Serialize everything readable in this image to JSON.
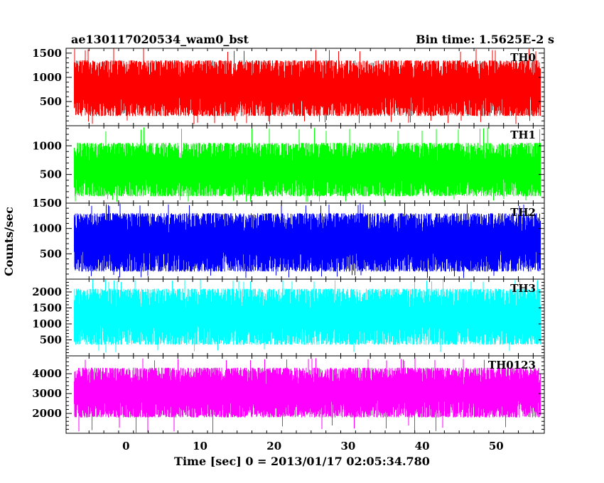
{
  "header": {
    "title": "ae130117020534_wam0_bst",
    "bin_time": "Bin time: 1.5625E-2 s"
  },
  "axes": {
    "ylabel": "Counts/sec",
    "xlabel": "Time [sec] 0 = 2013/01/17 02:05:34.780",
    "xlim": [
      -8.1,
      56.5
    ],
    "xticks": [
      0,
      10,
      20,
      30,
      40,
      50
    ],
    "xtick_labels": [
      "0",
      "10",
      "20",
      "30",
      "40",
      "50"
    ]
  },
  "chart_data": [
    {
      "type": "line",
      "name": "TH0",
      "label": "TH0",
      "color": "#ff0000",
      "ylim": [
        0,
        1600
      ],
      "yticks": [
        500,
        1000,
        1500
      ],
      "ytick_labels": [
        "500",
        "1000",
        "1500"
      ],
      "x_range": [
        -7.0,
        56.0
      ],
      "y_low_typical": 200,
      "y_high_typical": 1350,
      "y_max": 1600,
      "y_min": 30
    },
    {
      "type": "line",
      "name": "TH1",
      "label": "TH1",
      "color": "#00ff00",
      "ylim": [
        0,
        1350
      ],
      "yticks": [
        500,
        1000
      ],
      "ytick_labels": [
        "500",
        "1000"
      ],
      "x_range": [
        -7.0,
        56.0
      ],
      "y_low_typical": 120,
      "y_high_typical": 1050,
      "y_max": 1330,
      "y_min": 20
    },
    {
      "type": "line",
      "name": "TH2",
      "label": "TH2",
      "color": "#0000ff",
      "ylim": [
        0,
        1500
      ],
      "yticks": [
        500,
        1000,
        1500
      ],
      "ytick_labels": [
        "500",
        "1000",
        "1500"
      ],
      "x_range": [
        -7.0,
        56.0
      ],
      "y_low_typical": 150,
      "y_high_typical": 1300,
      "y_max": 1500,
      "y_min": 20
    },
    {
      "type": "line",
      "name": "TH3",
      "label": "TH3",
      "color": "#00ffff",
      "ylim": [
        0,
        2400
      ],
      "yticks": [
        500,
        1000,
        1500,
        2000
      ],
      "ytick_labels": [
        "500",
        "1000",
        "1500",
        "2000"
      ],
      "x_range": [
        -7.0,
        56.0
      ],
      "y_low_typical": 350,
      "y_high_typical": 2100,
      "y_max": 2400,
      "y_min": 100
    },
    {
      "type": "line",
      "name": "TH0123",
      "label": "TH0123",
      "color": "#ff00ff",
      "ylim": [
        1000,
        4900
      ],
      "yticks": [
        2000,
        3000,
        4000
      ],
      "ytick_labels": [
        "2000",
        "3000",
        "4000"
      ],
      "x_range": [
        -7.0,
        56.0
      ],
      "y_low_typical": 1800,
      "y_high_typical": 4300,
      "y_max": 4800,
      "y_min": 1000
    }
  ]
}
